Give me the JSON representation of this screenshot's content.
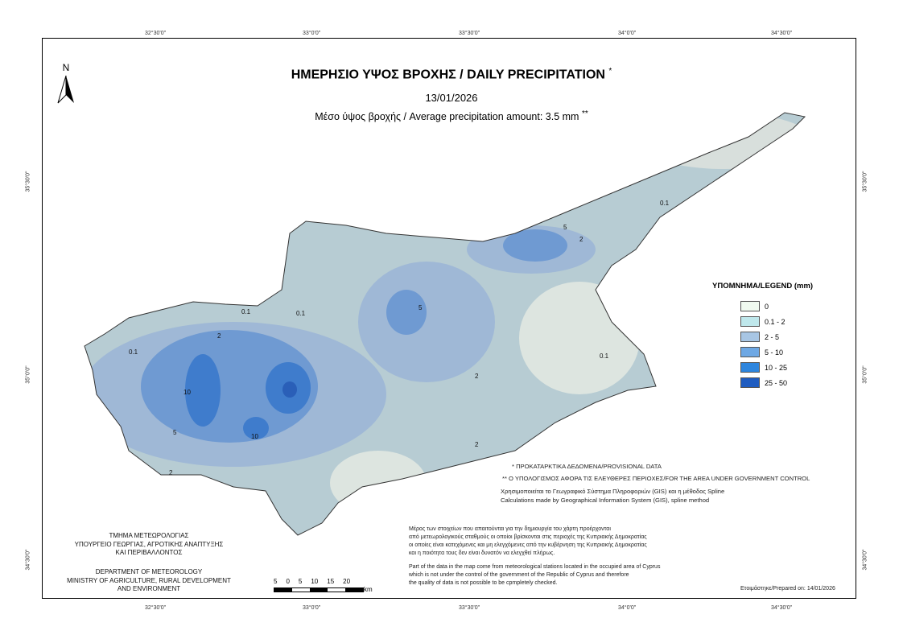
{
  "header": {
    "title": "ΗΜΕΡΗΣΙΟ ΥΨΟΣ ΒΡΟΧΗΣ / DAILY PRECIPITATION",
    "title_mark": "*",
    "date": "13/01/2026",
    "average": "Μέσο ύψος βροχής / Average precipitation amount: 3.5 mm",
    "average_mark": "**"
  },
  "north_arrow": "N",
  "grid_labels": {
    "lon": [
      "32°30'0\"",
      "33°0'0\"",
      "33°30'0\"",
      "34°0'0\"",
      "34°30'0\""
    ],
    "lat": [
      "35°30'0\"",
      "35°0'0\"",
      "34°30'0\""
    ]
  },
  "legend": {
    "title": "ΥΠΟΜΝΗΜΑ/LEGEND (mm)",
    "items": [
      {
        "label": "0",
        "color": "#f0faf0"
      },
      {
        "label": "0.1 - 2",
        "color": "#bfe8ec"
      },
      {
        "label": "2 - 5",
        "color": "#a8c6e4"
      },
      {
        "label": "5 - 10",
        "color": "#6ea8e4"
      },
      {
        "label": "10 - 25",
        "color": "#2e86de"
      },
      {
        "label": "25 - 50",
        "color": "#1f5cc0"
      }
    ]
  },
  "contour_labels": [
    "0.1",
    "0.1",
    "2",
    "5",
    "2",
    "0.1",
    "2",
    "5",
    "10",
    "10",
    "5",
    "2",
    "0.1",
    "2",
    "0.1"
  ],
  "notes": {
    "provisional": "* ΠΡΟΚΑΤΑΡΚΤΙΚΑ ΔΕΔΟΜΕΝΑ/PROVISIONAL DATA",
    "area": "** Ο ΥΠΟΛΟΓΙΣΜΟΣ ΑΦΟΡΑ ΤΙΣ ΕΛΕΥΘΕΡΕΣ ΠΕΡΙΟΧΕΣ/FOR THE AREA UNDER GOVERNMENT CONTROL",
    "method_gr": "Χρησιμοποιείται το Γεωγραφικό Σύστημα Πληροφοριών (GIS) και η μέθοδος Spline",
    "method_en": "Calculations made by Geographical Information System (GIS), spline method",
    "disclaimer_gr": [
      "Μέρος των στοιχείων που απαιτούνται για την δημιουργία του χάρτη προέρχονται",
      "από μετεωρολογικούς σταθμούς οι οποίοι βρίσκονται στις περιοχές της Κυπριακής Δημοκρατίας",
      "οι οποίες είναι κατεχόμενες και μη ελεγχόμενες από την κυβέρνηση της Κυπριακής Δημοκρατίας",
      "και η ποιότητα τους δεν είναι δυνατόν να ελεγχθεί πλήρως."
    ],
    "disclaimer_en": [
      "Part of the data in the map come from meteorological stations located in the occupied area of Cyprus",
      "which is not under the control of the government of the Republic of Cyprus and therefore",
      "the quality of data is not possible to be cpmpletely checked."
    ],
    "prepared": "Ετοιμάστηκε/Prepared on: 14/01/2026"
  },
  "org": {
    "gr": [
      "ΤΜΗΜΑ ΜΕΤΕΩΡΟΛΟΓΙΑΣ",
      "ΥΠΟΥΡΓΕΙΟ ΓΕΩΡΓΙΑΣ, ΑΓΡΟΤΙΚΗΣ ΑΝΑΠΤΥΞΗΣ",
      "ΚΑΙ ΠΕΡΙΒΑΛΛΟΝΤΟΣ"
    ],
    "en": [
      "DEPARTMENT OF METEOROLOGY",
      "MINISTRY OF AGRICULTURE, RURAL DEVELOPMENT",
      "AND ENVIRONMENT"
    ]
  },
  "scale": {
    "labels": [
      "5",
      "0",
      "5",
      "10",
      "15",
      "20"
    ],
    "unit": "km"
  }
}
